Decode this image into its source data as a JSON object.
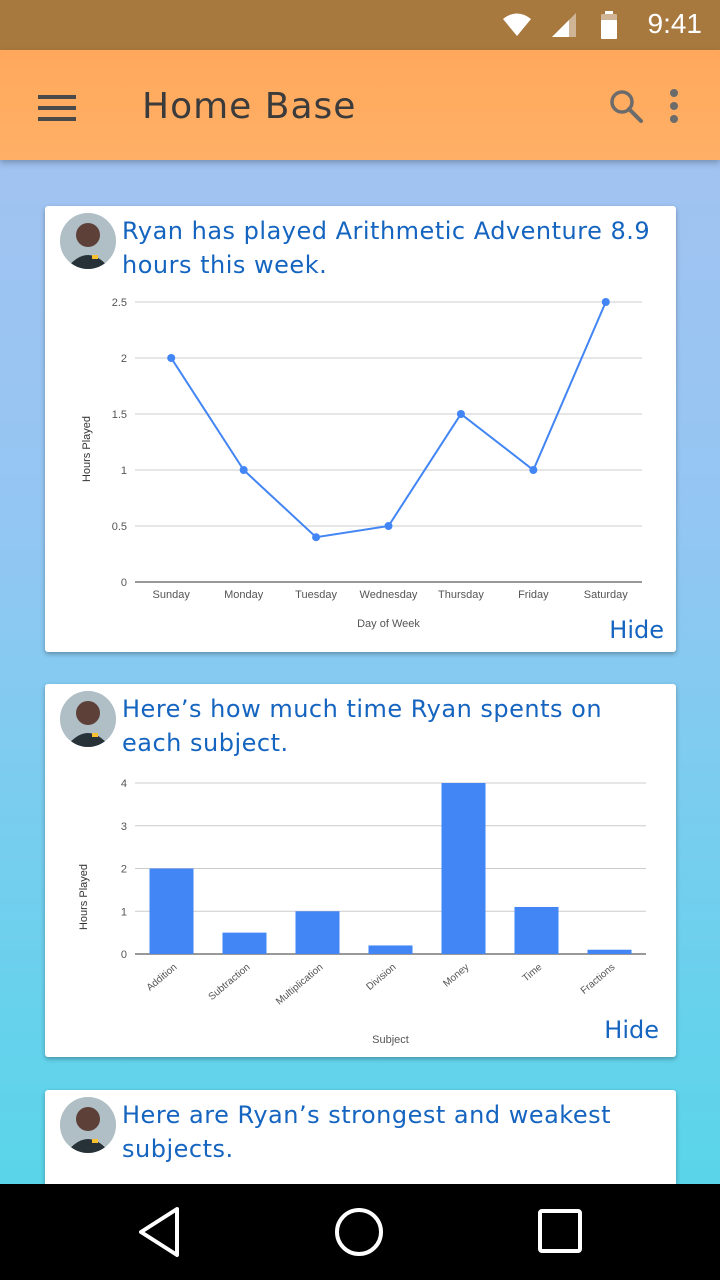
{
  "status_bar": {
    "time": "9:41"
  },
  "app_bar": {
    "title": "Home Base",
    "icons": [
      "menu-icon",
      "search-icon",
      "more-vert-icon"
    ]
  },
  "cards": [
    {
      "heading": "Ryan has played Arithmetic Adventure 8.9 hours this week.",
      "hide_label": "Hide"
    },
    {
      "heading": "Here’s how much time Ryan spents on each subject.",
      "hide_label": "Hide"
    },
    {
      "heading": "Here are Ryan’s strongest and weakest subjects."
    }
  ],
  "chart_data": [
    {
      "type": "line",
      "categories": [
        "Sunday",
        "Monday",
        "Tuesday",
        "Wednesday",
        "Thursday",
        "Friday",
        "Saturday"
      ],
      "values": [
        2,
        1,
        0.4,
        0.5,
        1.5,
        1,
        2.5
      ],
      "xlabel": "Day of Week",
      "ylabel": "Hours Played",
      "ylim": [
        0,
        2.5
      ],
      "yticks": [
        "0",
        "0.5",
        "1",
        "1.5",
        "2",
        "2.5"
      ],
      "grid": true,
      "color": "#4285f4"
    },
    {
      "type": "bar",
      "categories": [
        "Addition",
        "Subtraction",
        "Multiplication",
        "Division",
        "Money",
        "Time",
        "Fractions"
      ],
      "values": [
        2,
        0.5,
        1,
        0.2,
        4,
        1.1,
        0.1
      ],
      "xlabel": "Subject",
      "ylabel": "Hours Played",
      "ylim": [
        0,
        4
      ],
      "yticks": [
        "0",
        "1",
        "2",
        "3",
        "4"
      ],
      "grid": true,
      "color": "#4285f4"
    }
  ],
  "nav_bar": {
    "icons": [
      "back-icon",
      "home-icon",
      "recents-icon"
    ]
  },
  "colors": {
    "status_bar": "#a8793f",
    "app_bar": "#ffa85c",
    "accent": "#1565c0",
    "series": "#4285f4"
  }
}
